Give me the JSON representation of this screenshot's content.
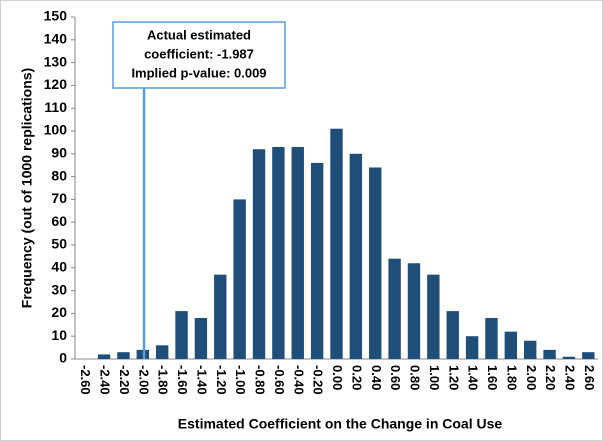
{
  "chart_data": {
    "type": "bar",
    "x_label": "Estimated Coefficient on the Change in Coal Use",
    "y_label": "Frequency (out of 1000 replications)",
    "categories": [
      "-2.60",
      "-2.40",
      "-2.20",
      "-2.00",
      "-1.80",
      "-1.60",
      "-1.40",
      "-1.20",
      "-1.00",
      "-0.80",
      "-0.60",
      "-0.40",
      "-0.20",
      "0.00",
      "0.20",
      "0.40",
      "0.60",
      "0.80",
      "1.00",
      "1.20",
      "1.40",
      "1.60",
      "1.80",
      "2.00",
      "2.20",
      "2.40",
      "2.60"
    ],
    "values": [
      0,
      2,
      3,
      4,
      6,
      21,
      18,
      37,
      70,
      92,
      93,
      93,
      86,
      101,
      90,
      84,
      44,
      42,
      37,
      21,
      10,
      18,
      12,
      8,
      4,
      1,
      3
    ],
    "color": "#1f4e79",
    "ylim": [
      0,
      150
    ],
    "yticks": [
      0,
      10,
      20,
      30,
      40,
      50,
      60,
      70,
      80,
      90,
      100,
      110,
      120,
      130,
      140,
      150
    ],
    "grid": false,
    "annotation": {
      "lines": [
        "Actual estimated",
        "coefficient: -1.987",
        "Implied p-value: 0.009"
      ],
      "x": -1.987,
      "color": "#5b9bd5"
    }
  }
}
